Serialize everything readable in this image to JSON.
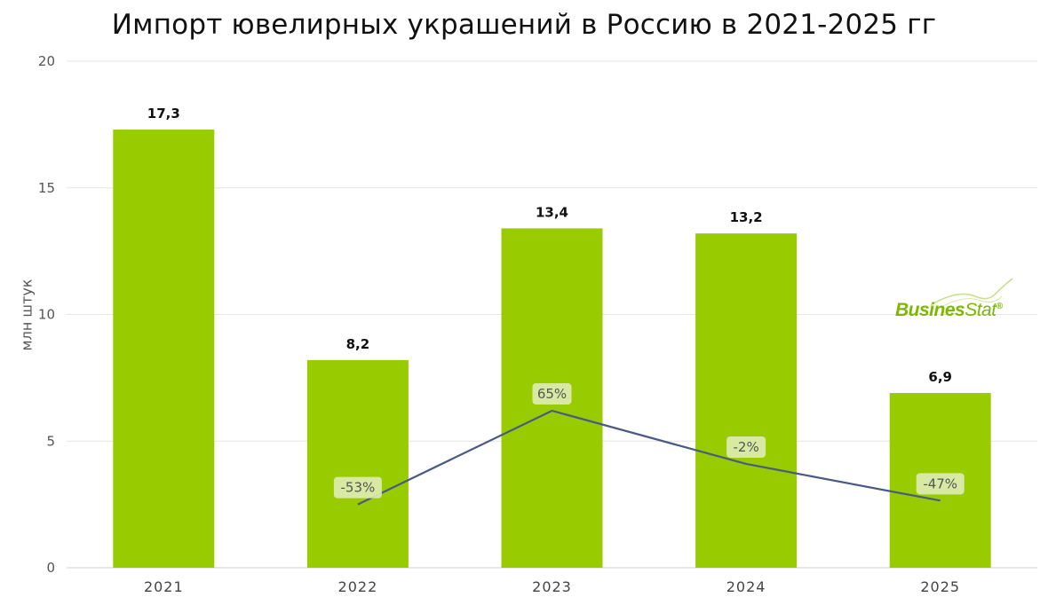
{
  "title": "Импорт ювелирных украшений в Россию в 2021-2025 гг",
  "logo": {
    "part1": "Busines",
    "part2": "Stat",
    "mark": "®"
  },
  "colors": {
    "bar": "#99cc00",
    "line": "#4a5a85",
    "label_bg": "#dcebb0",
    "grid": "#e6e6e6"
  },
  "chart_data": {
    "type": "bar",
    "title": "Импорт ювелирных украшений в Россию в 2021-2025 гг",
    "ylabel": "млн штук",
    "xlabel": "",
    "categories": [
      "2021",
      "2022",
      "2023",
      "2024",
      "2025"
    ],
    "values": [
      17.3,
      8.2,
      13.4,
      13.2,
      6.9
    ],
    "value_labels": [
      "17,3",
      "8,2",
      "13,4",
      "13,2",
      "6,9"
    ],
    "ylim": [
      0,
      20
    ],
    "yticks": [
      0,
      5,
      10,
      15,
      20
    ],
    "grid": true,
    "growth_line": {
      "categories": [
        "2022",
        "2023",
        "2024",
        "2025"
      ],
      "labels": [
        "-53%",
        "65%",
        "-2%",
        "-47%"
      ],
      "plot_positions": [
        2.5,
        6.2,
        4.1,
        2.65
      ]
    }
  }
}
